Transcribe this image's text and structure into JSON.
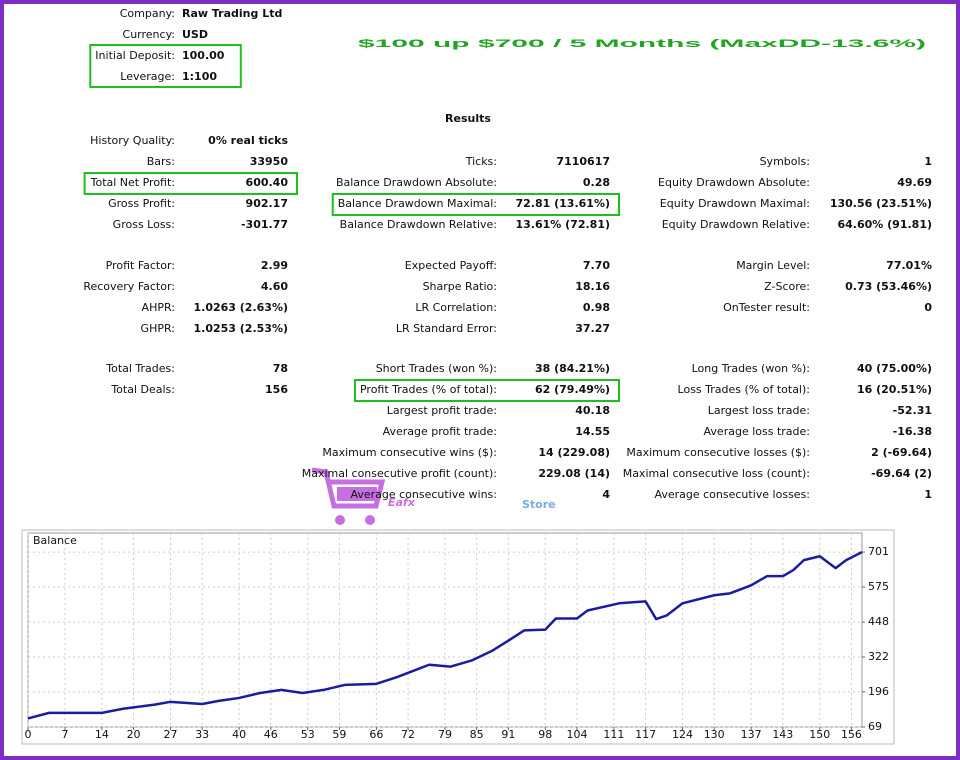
{
  "header": {
    "items": [
      {
        "label": "Company:",
        "value": "Raw Trading Ltd"
      },
      {
        "label": "Currency:",
        "value": "USD"
      },
      {
        "label": "Initial Deposit:",
        "value": "100.00",
        "highlight": true
      },
      {
        "label": "Leverage:",
        "value": "1:100",
        "highlight": true
      }
    ],
    "headline": "$100 up $700 / 5 Months (MaxDD-13.6%)"
  },
  "results": {
    "title": "Results",
    "groups": [
      [
        {
          "left": {
            "label": "History Quality:",
            "value": "0% real ticks"
          }
        },
        {
          "left": {
            "label": "Bars:",
            "value": "33950"
          },
          "middle": {
            "label": "Ticks:",
            "value": "7110617"
          },
          "right": {
            "label": "Symbols:",
            "value": "1"
          }
        },
        {
          "left": {
            "label": "Total Net Profit:",
            "value": "600.40",
            "highlight": true
          },
          "middle": {
            "label": "Balance Drawdown Absolute:",
            "value": "0.28"
          },
          "right": {
            "label": "Equity Drawdown Absolute:",
            "value": "49.69"
          }
        },
        {
          "left": {
            "label": "Gross Profit:",
            "value": "902.17"
          },
          "middle": {
            "label": "Balance Drawdown Maximal:",
            "value": "72.81 (13.61%)",
            "highlight": true
          },
          "right": {
            "label": "Equity Drawdown Maximal:",
            "value": "130.56 (23.51%)"
          }
        },
        {
          "left": {
            "label": "Gross Loss:",
            "value": "-301.77"
          },
          "middle": {
            "label": "Balance Drawdown Relative:",
            "value": "13.61% (72.81)"
          },
          "right": {
            "label": "Equity Drawdown Relative:",
            "value": "64.60% (91.81)"
          }
        }
      ],
      [
        {
          "left": {
            "label": "Profit Factor:",
            "value": "2.99"
          },
          "middle": {
            "label": "Expected Payoff:",
            "value": "7.70"
          },
          "right": {
            "label": "Margin Level:",
            "value": "77.01%"
          }
        },
        {
          "left": {
            "label": "Recovery Factor:",
            "value": "4.60"
          },
          "middle": {
            "label": "Sharpe Ratio:",
            "value": "18.16"
          },
          "right": {
            "label": "Z-Score:",
            "value": "0.73 (53.46%)"
          }
        },
        {
          "left": {
            "label": "AHPR:",
            "value": "1.0263 (2.63%)"
          },
          "middle": {
            "label": "LR Correlation:",
            "value": "0.98"
          },
          "right": {
            "label": "OnTester result:",
            "value": "0"
          }
        },
        {
          "left": {
            "label": "GHPR:",
            "value": "1.0253 (2.53%)"
          },
          "middle": {
            "label": "LR Standard Error:",
            "value": "37.27"
          }
        }
      ],
      [
        {
          "left": {
            "label": "Total Trades:",
            "value": "78"
          },
          "middle": {
            "label": "Short Trades (won %):",
            "value": "38 (84.21%)"
          },
          "right": {
            "label": "Long Trades (won %):",
            "value": "40 (75.00%)"
          }
        },
        {
          "left": {
            "label": "Total Deals:",
            "value": "156"
          },
          "middle": {
            "label": "Profit Trades (% of total):",
            "value": "62 (79.49%)",
            "highlight": true
          },
          "right": {
            "label": "Loss Trades (% of total):",
            "value": "16 (20.51%)"
          }
        },
        {
          "middle": {
            "label": "Largest profit trade:",
            "value": "40.18"
          },
          "right": {
            "label": "Largest loss trade:",
            "value": "-52.31"
          }
        },
        {
          "middle": {
            "label": "Average profit trade:",
            "value": "14.55"
          },
          "right": {
            "label": "Average loss trade:",
            "value": "-16.38"
          }
        },
        {
          "middle": {
            "label": "Maximum consecutive wins ($):",
            "value": "14 (229.08)"
          },
          "right": {
            "label": "Maximum consecutive losses ($):",
            "value": "2 (-69.64)"
          }
        },
        {
          "middle": {
            "label": "Maximal consecutive profit (count):",
            "value": "229.08 (14)"
          },
          "right": {
            "label": "Maximal consecutive loss (count):",
            "value": "-69.64 (2)"
          }
        },
        {
          "middle": {
            "label": "Average consecutive wins:",
            "value": "4"
          },
          "right": {
            "label": "Average consecutive losses:",
            "value": "1"
          }
        }
      ]
    ]
  },
  "watermark": {
    "brand": "Eafx",
    "suffix": "Store"
  },
  "chart_data": {
    "type": "line",
    "title": "Balance",
    "color": "#1c1c9e",
    "x": [
      0,
      4,
      14,
      18,
      24,
      27,
      33,
      36,
      40,
      44,
      48,
      52,
      56,
      60,
      66,
      70,
      73,
      76,
      80,
      84,
      88,
      91,
      94,
      98,
      100,
      104,
      106,
      112,
      114,
      117,
      119,
      121,
      124,
      130,
      133,
      137,
      140,
      143,
      145,
      147,
      150,
      153,
      155,
      158
    ],
    "values": [
      100,
      120,
      120,
      135,
      150,
      160,
      152,
      163,
      174,
      192,
      203,
      192,
      203,
      221,
      225,
      250,
      272,
      294,
      287,
      309,
      345,
      381,
      418,
      421,
      461,
      461,
      490,
      516,
      519,
      523,
      459,
      472,
      516,
      545,
      552,
      581,
      614,
      614,
      636,
      672,
      686,
      643,
      672,
      701
    ],
    "xlim": [
      0,
      158
    ],
    "ylim": [
      69,
      770
    ],
    "xticks": [
      0,
      7,
      14,
      20,
      27,
      33,
      40,
      46,
      53,
      59,
      66,
      72,
      79,
      85,
      91,
      98,
      104,
      111,
      117,
      124,
      130,
      137,
      143,
      150,
      156
    ],
    "yticks": [
      69,
      196,
      322,
      448,
      575,
      701
    ],
    "grid": true
  }
}
